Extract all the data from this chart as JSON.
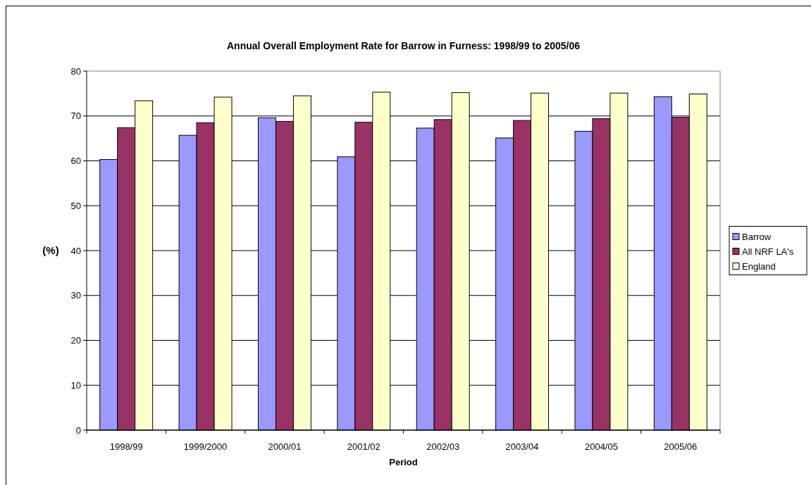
{
  "chart_data": {
    "type": "bar",
    "title": "Annual Overall Employment Rate for Barrow in Furness: 1998/99 to 2005/06",
    "xlabel": "Period",
    "ylabel": "(%)",
    "categories": [
      "1998/99",
      "1999/2000",
      "2000/01",
      "2001/02",
      "2002/03",
      "2003/04",
      "2004/05",
      "2005/06"
    ],
    "series": [
      {
        "name": "Barrow",
        "color": "#9999ff",
        "values": [
          60.3,
          65.7,
          69.6,
          60.9,
          67.3,
          65.1,
          66.6,
          74.3
        ]
      },
      {
        "name": "All NRF LA's",
        "color": "#993366",
        "values": [
          67.4,
          68.5,
          68.8,
          68.6,
          69.2,
          69.0,
          69.4,
          69.7
        ]
      },
      {
        "name": "England",
        "color": "#ffffcc",
        "values": [
          73.4,
          74.2,
          74.5,
          75.3,
          75.2,
          75.1,
          75.1,
          74.9
        ]
      }
    ],
    "ylim": [
      0,
      80
    ],
    "yticks": [
      0,
      10,
      20,
      30,
      40,
      50,
      60,
      70,
      80
    ],
    "grid": "y",
    "legend": "right"
  }
}
